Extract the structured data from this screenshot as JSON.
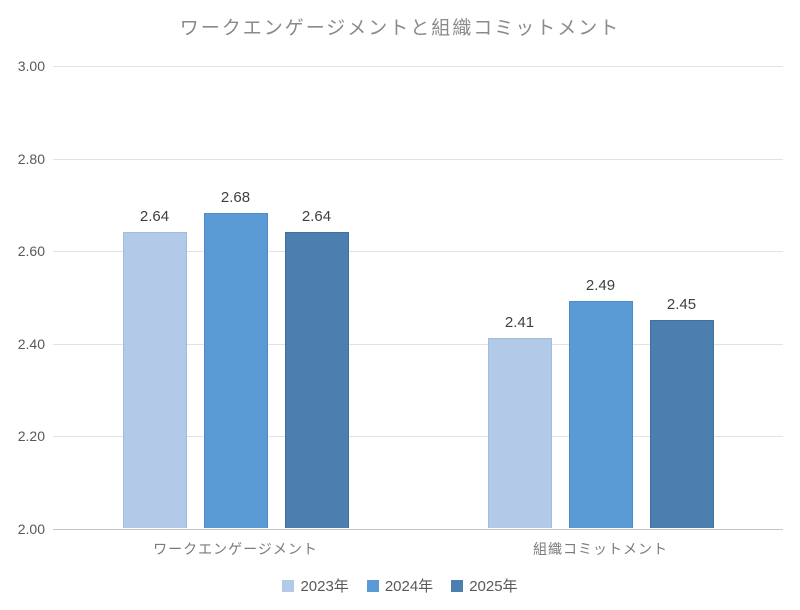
{
  "title": "ワークエンゲージメントと組織コミットメント",
  "chart_data": {
    "type": "bar",
    "title": "ワークエンゲージメントと組織コミットメント",
    "categories": [
      "ワークエンゲージメント",
      "組織コミットメント"
    ],
    "series": [
      {
        "name": "2023年",
        "color": "#b3c9e8",
        "border_color": "#a2bcde",
        "values": [
          2.64,
          2.41
        ],
        "value_labels": [
          "2.64",
          "2.41"
        ]
      },
      {
        "name": "2024年",
        "color": "#5b9bd5",
        "border_color": "#4b8cc8",
        "values": [
          2.68,
          2.49
        ],
        "value_labels": [
          "2.68",
          "2.49"
        ]
      },
      {
        "name": "2025年",
        "color": "#4c7fb0",
        "border_color": "#3f709f",
        "values": [
          2.64,
          2.45
        ],
        "value_labels": [
          "2.64",
          "2.45"
        ]
      }
    ],
    "xlabel": "",
    "ylabel": "",
    "ylim": [
      2.0,
      3.0
    ],
    "yticks": [
      {
        "value": 3.0,
        "label": "3.00"
      },
      {
        "value": 2.8,
        "label": "2.80"
      },
      {
        "value": 2.6,
        "label": "2.60"
      },
      {
        "value": 2.4,
        "label": "2.40"
      },
      {
        "value": 2.2,
        "label": "2.20"
      },
      {
        "value": 2.0,
        "label": "2.00"
      }
    ],
    "grid": true,
    "legend_position": "bottom"
  },
  "colors": {
    "background": "#ffffff",
    "title_text": "#8a8a8a",
    "axis_tick_text": "#595959",
    "category_text": "#7a7a7a",
    "value_label_text": "#404040",
    "legend_text": "#595959",
    "gridline": "#e2e2e2",
    "axis_line": "#c6c6c6"
  }
}
